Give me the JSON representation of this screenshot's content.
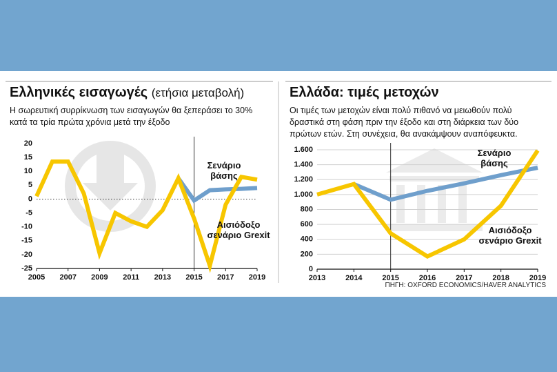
{
  "chart_data": [
    {
      "type": "line",
      "title": "Ελληνικές εισαγωγές",
      "title_note": "(ετήσια μεταβολή)",
      "subtitle": "Η σωρευτική συρρίκνωση των εισαγωγών θα ξεπεράσει το 30% κατά τα τρία πρώτα χρόνια μετά την έξοδο",
      "x": [
        2005,
        2006,
        2007,
        2008,
        2009,
        2010,
        2011,
        2012,
        2013,
        2014,
        2015,
        2016,
        2017,
        2018,
        2019
      ],
      "xlim": [
        2005,
        2019
      ],
      "xticks": [
        2005,
        2007,
        2009,
        2011,
        2013,
        2015,
        2017,
        2019
      ],
      "ylim": [
        -25,
        20
      ],
      "yticks": [
        -25,
        -20,
        -15,
        -10,
        -5,
        0,
        5,
        10,
        15,
        20
      ],
      "grid": false,
      "zero_line": true,
      "vline_x": 2015,
      "series": [
        {
          "name": "Σενάριο βάσης",
          "color": "#6f9fcc",
          "values": [
            null,
            null,
            null,
            null,
            null,
            null,
            null,
            null,
            null,
            7.5,
            -0.5,
            3.2,
            3.5,
            3.7,
            4
          ]
        },
        {
          "name": "Αισιόδοξο σενάριο Grexit",
          "color": "#f7c600",
          "values": [
            1,
            13.5,
            13.5,
            2,
            -19.5,
            -5,
            -8,
            -10,
            -4,
            7.5,
            -7,
            -24,
            -2,
            8,
            7
          ]
        }
      ]
    },
    {
      "type": "line",
      "title": "Ελλάδα: τιμές μετοχών",
      "subtitle": "Οι τιμές των μετοχών είναι πολύ πιθανό να μειωθούν πολύ δραστικά στη φάση πριν την έξοδο και στη διάρκεια των δύο πρώτων ετών. Στη συνέχεια, θα ανακάμψουν αναπόφευκτα.",
      "x": [
        2013,
        2014,
        2015,
        2016,
        2017,
        2018,
        2019
      ],
      "xlim": [
        2013,
        2019
      ],
      "xticks": [
        2013,
        2014,
        2015,
        2016,
        2017,
        2018,
        2019
      ],
      "ylim": [
        0,
        1600
      ],
      "yticks": [
        0,
        200,
        400,
        600,
        800,
        {
          "value": 1000,
          "label": "1.000"
        },
        {
          "value": 1200,
          "label": "1.200"
        },
        {
          "value": 1400,
          "label": "1.400"
        },
        {
          "value": 1600,
          "label": "1.600"
        }
      ],
      "grid": true,
      "zero_line": false,
      "vline_x": 2015,
      "source": "ΠΗΓΗ: OXFORD ECONOMICS/HAVER ANALYTICS",
      "series": [
        {
          "name": "Σενάριο βάσης",
          "color": "#6f9fcc",
          "values": [
            null,
            1140,
            930,
            1050,
            1150,
            1260,
            1360
          ]
        },
        {
          "name": "Αισιόδοξο σενάριο Grexit",
          "color": "#f7c600",
          "values": [
            1000,
            1140,
            480,
            170,
            400,
            850,
            1590
          ]
        }
      ]
    }
  ]
}
